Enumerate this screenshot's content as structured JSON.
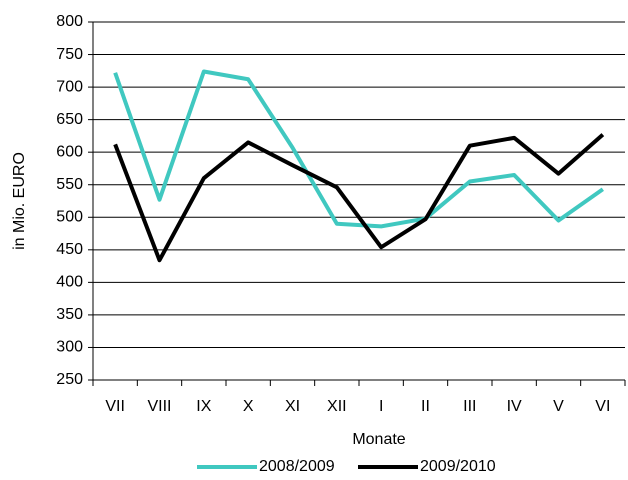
{
  "chart_data": {
    "type": "line",
    "x_label": "Monate",
    "y_label": "in Mio. EURO",
    "categories": [
      "VII",
      "VIII",
      "IX",
      "X",
      "XI",
      "XII",
      "I",
      "II",
      "III",
      "IV",
      "V",
      "VI"
    ],
    "series": [
      {
        "name": "2008/2009",
        "color": "#40c8c0",
        "values": [
          722,
          527,
          724,
          712,
          607,
          490,
          486,
          498,
          555,
          565,
          495,
          543
        ]
      },
      {
        "name": "2009/2010",
        "color": "#000000",
        "values": [
          612,
          434,
          560,
          615,
          580,
          546,
          454,
          497,
          610,
          622,
          567,
          627
        ]
      }
    ],
    "ylim": [
      250,
      800
    ],
    "yticks": [
      250,
      300,
      350,
      400,
      450,
      500,
      550,
      600,
      650,
      700,
      750,
      800
    ],
    "grid": true,
    "legend": "bottom"
  }
}
